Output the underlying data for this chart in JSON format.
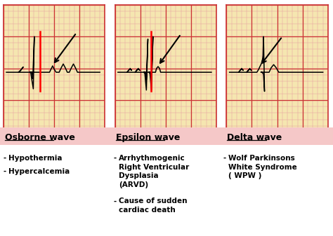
{
  "background_color": "#ffffff",
  "ekg_bg_color": "#f5e6b0",
  "grid_major_color": "#cc3333",
  "grid_minor_color": "#e8a0a0",
  "panel_titles": [
    "Osborne wave",
    "Epsilon wave",
    "Delta wave"
  ],
  "title_fontsize": 9,
  "label_fontsize": 7.5,
  "pink_band_color": "#f5c8c8",
  "bullet_labels": [
    [
      "Hypothermia",
      "Hypercalcemia"
    ],
    [
      "Arrhythmogenic\nRight Ventricular\nDysplasia\n(ARVD)",
      "Cause of sudden\ncardiac death"
    ],
    [
      "Wolf Parkinsons\nWhite Syndrome\n( WPW )"
    ]
  ]
}
